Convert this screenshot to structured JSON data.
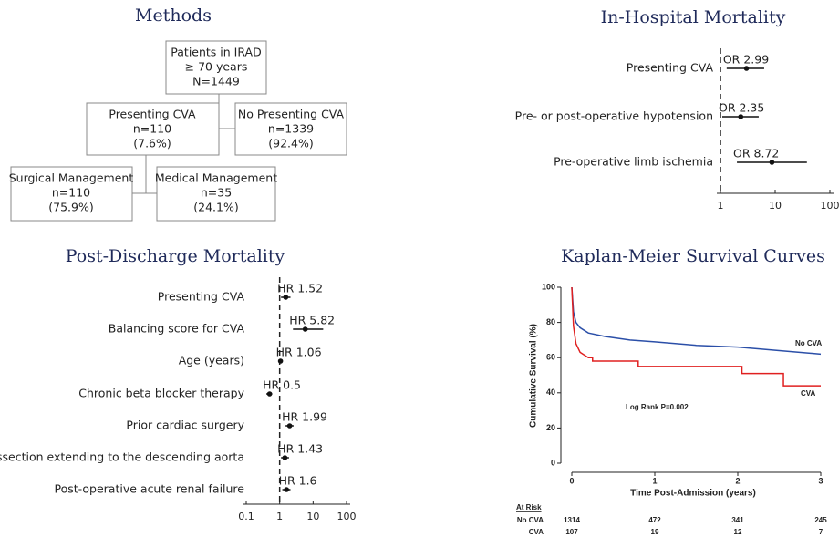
{
  "methods": {
    "title": "Methods",
    "nodes": [
      {
        "lines": [
          "Patients in IRAD",
          "≥ 70 years",
          "N=1449"
        ]
      },
      {
        "lines": [
          "Presenting CVA",
          "n=110",
          "(7.6%)"
        ]
      },
      {
        "lines": [
          "No Presenting CVA",
          "n=1339",
          "(92.4%)"
        ]
      },
      {
        "lines": [
          "Surgical Management",
          "n=110",
          "(75.9%)"
        ]
      },
      {
        "lines": [
          "Medical Management",
          "n=35",
          "(24.1%)"
        ]
      }
    ]
  },
  "chart_data": [
    {
      "type": "forest",
      "title": "In-Hospital Mortality",
      "categories": [
        "Presenting CVA",
        "Pre- or post-operative hypotension",
        "Pre-operative limb ischemia"
      ],
      "values": [
        2.99,
        2.35,
        8.72
      ],
      "value_labels": [
        "OR 2.99",
        "OR 2.35",
        "OR 8.72"
      ],
      "ci_low": [
        1.3,
        1.08,
        2.0
      ],
      "ci_high": [
        6.3,
        5.0,
        38
      ],
      "xlim": [
        1,
        100
      ],
      "xticks": [
        1,
        10,
        100
      ],
      "log_scale": true,
      "reference_line": 1,
      "color": "#111111"
    },
    {
      "type": "forest",
      "title": "Post-Discharge Mortality",
      "categories": [
        "Presenting CVA",
        "Balancing score for CVA",
        "Age (years)",
        "Chronic beta blocker therapy",
        "Prior cardiac surgery",
        "Dissection extending to the descending aorta",
        "Post-operative acute renal failure"
      ],
      "values": [
        1.52,
        5.82,
        1.06,
        0.5,
        1.99,
        1.43,
        1.6
      ],
      "value_labels": [
        "HR 1.52",
        "HR 5.82",
        "HR 1.06",
        "HR 0.5",
        "HR 1.99",
        "HR 1.43",
        "HR 1.6"
      ],
      "ci_low": [
        1.1,
        2.5,
        1.0,
        0.4,
        1.5,
        1.1,
        1.2
      ],
      "ci_high": [
        2.1,
        20,
        1.1,
        0.6,
        2.6,
        1.9,
        2.1
      ],
      "xlim": [
        0.1,
        100
      ],
      "xticks": [
        0.1,
        1,
        10,
        100
      ],
      "log_scale": true,
      "reference_line": 1,
      "color": "#111111"
    },
    {
      "type": "line",
      "title": "Kaplan-Meier Survival Curves",
      "x_label": "Time Post-Admission (years)",
      "y_label": "Cumulative Survival (%)",
      "series": [
        {
          "name": "No CVA",
          "color": "#2b4fa8",
          "x": [
            0,
            0.02,
            0.05,
            0.1,
            0.2,
            0.4,
            0.7,
            1,
            1.5,
            2,
            2.5,
            3
          ],
          "values": [
            100,
            86,
            80,
            77,
            74,
            72,
            70,
            69,
            67,
            66,
            64,
            62
          ]
        },
        {
          "name": "CVA",
          "color": "#e02020",
          "x": [
            0,
            0.02,
            0.05,
            0.1,
            0.2,
            0.25,
            0.25,
            0.8,
            0.8,
            2.05,
            2.05,
            2.55,
            2.55,
            3
          ],
          "values": [
            100,
            78,
            68,
            63,
            60,
            60,
            58,
            58,
            55,
            55,
            51,
            51,
            44,
            44
          ]
        }
      ],
      "annotations": [
        "Log Rank P=0.002"
      ],
      "at_risk": {
        "title": "At Risk",
        "counts": [
          [
            1314,
            472,
            341,
            245
          ],
          [
            107,
            19,
            12,
            7
          ]
        ]
      },
      "xlim": [
        0,
        3
      ],
      "xticks": [
        0,
        1,
        2,
        3
      ],
      "ylim": [
        0,
        100
      ],
      "yticks": [
        0,
        20,
        40,
        60,
        80,
        100
      ]
    }
  ]
}
